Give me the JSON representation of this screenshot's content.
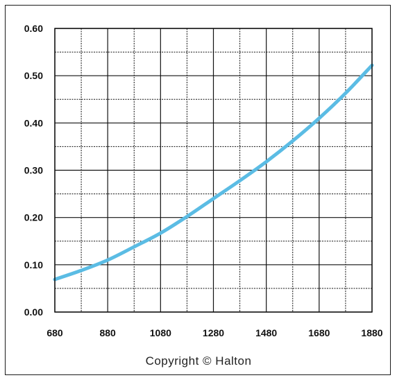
{
  "chart_data": {
    "type": "line",
    "title": "",
    "xlabel": "",
    "ylabel": "",
    "xlim": [
      680,
      1880
    ],
    "ylim": [
      0.0,
      0.6
    ],
    "x_ticks": [
      680,
      880,
      1080,
      1280,
      1480,
      1680,
      1880
    ],
    "x_tick_labels": [
      "680",
      "880",
      "1080",
      "1280",
      "1480",
      "1680",
      "1880"
    ],
    "y_ticks": [
      0.0,
      0.1,
      0.2,
      0.3,
      0.4,
      0.5,
      0.6
    ],
    "y_tick_labels": [
      "0.00",
      "0.10",
      "0.20",
      "0.30",
      "0.40",
      "0.50",
      "0.60"
    ],
    "grid": true,
    "series": [
      {
        "color": "#5bbce4",
        "x": [
          680,
          780,
          880,
          980,
          1080,
          1180,
          1280,
          1380,
          1480,
          1580,
          1680,
          1780,
          1880
        ],
        "y": [
          0.069,
          0.088,
          0.11,
          0.138,
          0.167,
          0.202,
          0.24,
          0.278,
          0.318,
          0.362,
          0.41,
          0.463,
          0.522
        ]
      }
    ]
  },
  "footer": {
    "copyright": "Copyright © Halton"
  }
}
